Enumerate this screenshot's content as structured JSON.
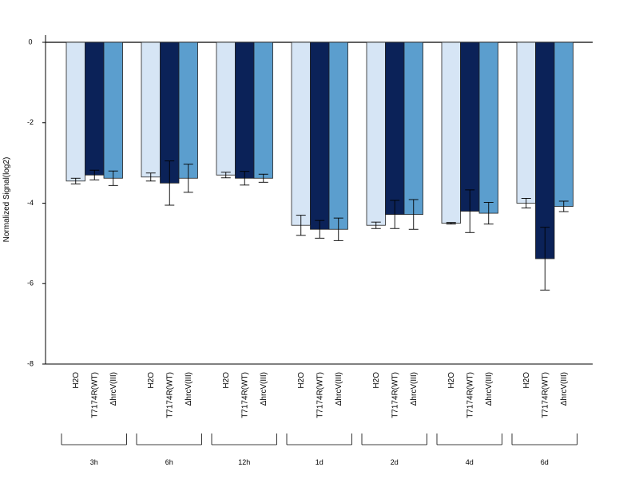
{
  "chart_data": {
    "type": "bar",
    "title": "",
    "xlabel": "",
    "ylabel": "Normalized Signal(log2)",
    "ylim": [
      -8,
      0
    ],
    "yticks": [
      0,
      -2,
      -4,
      -6,
      -8
    ],
    "groups": [
      "3h",
      "6h",
      "12h",
      "1d",
      "2d",
      "4d",
      "6d"
    ],
    "bar_labels": [
      "H2O",
      "T7174R(WT)",
      "ΔhrcV(III)"
    ],
    "series": [
      {
        "name": "H2O",
        "color": "#d6e5f5",
        "values": [
          -3.45,
          -3.35,
          -3.3,
          -4.55,
          -4.55,
          -4.5,
          -4.0
        ],
        "errors": [
          0.07,
          0.1,
          0.07,
          0.25,
          0.08,
          0.02,
          0.12
        ]
      },
      {
        "name": "T7174R(WT)",
        "color": "#0b2258",
        "values": [
          -3.3,
          -3.5,
          -3.38,
          -4.65,
          -4.28,
          -4.2,
          -5.38
        ],
        "errors": [
          0.12,
          0.55,
          0.17,
          0.22,
          0.35,
          0.53,
          0.78
        ]
      },
      {
        "name": "ΔhrcV(III)",
        "color": "#5b9ece",
        "values": [
          -3.38,
          -3.38,
          -3.38,
          -4.65,
          -4.28,
          -4.25,
          -4.08
        ],
        "errors": [
          0.18,
          0.35,
          0.1,
          0.28,
          0.37,
          0.27,
          0.13
        ]
      }
    ],
    "grid": false,
    "legend": "none"
  }
}
